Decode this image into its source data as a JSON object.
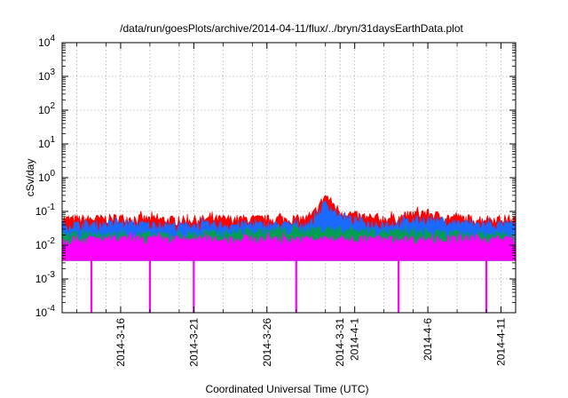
{
  "chart_data": {
    "type": "area",
    "title": "/data/run/goesPlots/archive/2014-04-11/flux/../bryn/31daysEarthData.plot",
    "xlabel": "Coordinated Universal Time (UTC)",
    "ylabel": "cSv/day",
    "y_scale": "log",
    "ylim": [
      0.0001,
      10000
    ],
    "xlim": [
      "2014-03-12",
      "2014-04-12"
    ],
    "grid": true,
    "y_ticks": [
      {
        "value": 0.0001,
        "base": "10",
        "exp": "-4"
      },
      {
        "value": 0.001,
        "base": "10",
        "exp": "-3"
      },
      {
        "value": 0.01,
        "base": "10",
        "exp": "-2"
      },
      {
        "value": 0.1,
        "base": "10",
        "exp": "-1"
      },
      {
        "value": 1,
        "base": "10",
        "exp": "0"
      },
      {
        "value": 10,
        "base": "10",
        "exp": "1"
      },
      {
        "value": 100,
        "base": "10",
        "exp": "2"
      },
      {
        "value": 1000,
        "base": "10",
        "exp": "3"
      },
      {
        "value": 10000,
        "base": "10",
        "exp": "4"
      }
    ],
    "x_ticks": [
      {
        "date": "2014-03-16",
        "label": "2014-3-16"
      },
      {
        "date": "2014-03-21",
        "label": "2014-3-21"
      },
      {
        "date": "2014-03-26",
        "label": "2014-3-26"
      },
      {
        "date": "2014-03-31",
        "label": "2014-3-31"
      },
      {
        "date": "2014-04-01",
        "label": "2014-4-1"
      },
      {
        "date": "2014-04-06",
        "label": "2014-4-6"
      },
      {
        "date": "2014-04-11",
        "label": "2014-4-11"
      }
    ],
    "x_minor_tick_dates": [
      "2014-03-13",
      "2014-03-15",
      "2014-03-18",
      "2014-03-20",
      "2014-03-23",
      "2014-03-25",
      "2014-03-28",
      "2014-03-30",
      "2014-04-03",
      "2014-04-05",
      "2014-04-08",
      "2014-04-10"
    ],
    "series": [
      {
        "color": "#ff0000",
        "x": [
          "2014-03-12",
          "2014-03-14",
          "2014-03-16",
          "2014-03-18",
          "2014-03-20",
          "2014-03-22",
          "2014-03-24",
          "2014-03-26",
          "2014-03-28",
          "2014-03-29",
          "2014-03-30",
          "2014-03-31",
          "2014-04-02",
          "2014-04-04",
          "2014-04-05",
          "2014-04-06",
          "2014-04-07",
          "2014-04-09",
          "2014-04-12"
        ],
        "y": [
          0.06,
          0.06,
          0.065,
          0.06,
          0.055,
          0.06,
          0.06,
          0.06,
          0.06,
          0.065,
          0.3,
          0.1,
          0.06,
          0.065,
          0.085,
          0.09,
          0.07,
          0.06,
          0.06
        ]
      },
      {
        "color": "#1a6aff",
        "x": [
          "2014-03-12",
          "2014-03-14",
          "2014-03-16",
          "2014-03-18",
          "2014-03-20",
          "2014-03-22",
          "2014-03-24",
          "2014-03-26",
          "2014-03-28",
          "2014-03-29",
          "2014-03-30",
          "2014-03-31",
          "2014-04-02",
          "2014-04-04",
          "2014-04-05",
          "2014-04-06",
          "2014-04-07",
          "2014-04-09",
          "2014-04-12"
        ],
        "y": [
          0.04,
          0.04,
          0.045,
          0.04,
          0.038,
          0.04,
          0.04,
          0.04,
          0.04,
          0.045,
          0.18,
          0.07,
          0.042,
          0.045,
          0.055,
          0.06,
          0.05,
          0.042,
          0.04
        ]
      },
      {
        "color": "#00a050",
        "x": [
          "2014-03-12",
          "2014-03-20",
          "2014-03-30",
          "2014-04-06",
          "2014-04-12"
        ],
        "y": [
          0.02,
          0.02,
          0.03,
          0.022,
          0.02
        ]
      },
      {
        "color": "#ff00ff",
        "x": [
          "2014-03-12",
          "2014-04-12"
        ],
        "y": [
          0.015,
          0.015
        ],
        "floor": 0.0035,
        "dropouts": [
          "2014-03-14",
          "2014-03-18",
          "2014-03-21",
          "2014-03-28",
          "2014-04-04",
          "2014-04-10"
        ]
      }
    ]
  }
}
